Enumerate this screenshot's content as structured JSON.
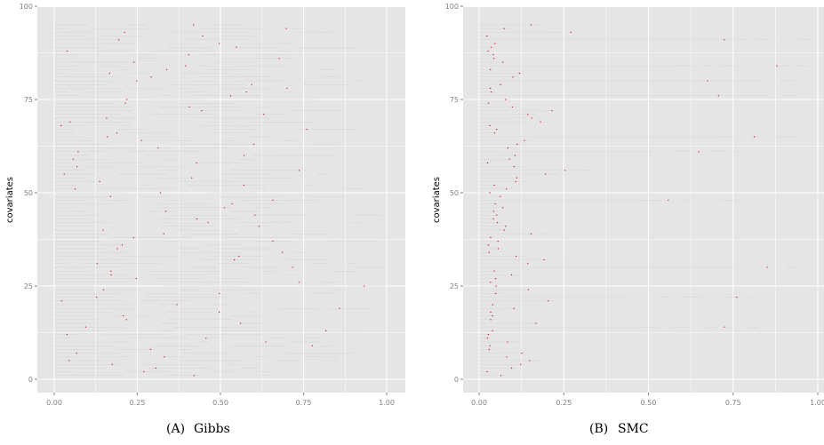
{
  "chart_data": [
    {
      "type": "bar",
      "subtype": "horizontal interval bars (one row per covariate)",
      "caption_label": "(A)",
      "caption_title": "Gibbs",
      "ylabel": "covariates",
      "xlabel": "",
      "xlim": [
        0,
        1
      ],
      "ylim": [
        0,
        100
      ],
      "x_ticks": [
        "0.00",
        "0.25",
        "0.50",
        "0.75",
        "1.00"
      ],
      "y_ticks": [
        "0",
        "25",
        "50",
        "75",
        "100"
      ],
      "grid": true,
      "panel_background": "#e5e5e5",
      "interval_colors": [
        "#000000",
        "#ffffff"
      ],
      "marker_color": "#cc0000",
      "n_rows": 95,
      "description": "Each covariate row shows alternating black/white interval segments from 0 towards ~0.55-1.00 with a red tick marker."
    },
    {
      "type": "bar",
      "subtype": "horizontal interval bars (one row per covariate)",
      "caption_label": "(B)",
      "caption_title": "SMC",
      "ylabel": "covariates",
      "xlabel": "",
      "xlim": [
        0,
        1
      ],
      "ylim": [
        0,
        100
      ],
      "x_ticks": [
        "0.00",
        "0.25",
        "0.50",
        "0.75",
        "1.00"
      ],
      "y_ticks": [
        "0",
        "25",
        "50",
        "75",
        "100"
      ],
      "grid": true,
      "panel_background": "#e5e5e5",
      "interval_colors": [
        "#333333",
        "#000000",
        "#ffffff"
      ],
      "marker_color": "#cc0000",
      "n_rows": 95,
      "long_rows_end": [
        {
          "row": 91,
          "end": 0.98
        },
        {
          "row": 84,
          "end": 0.97
        },
        {
          "row": 80,
          "end": 0.95
        },
        {
          "row": 76,
          "end": 0.93
        },
        {
          "row": 65,
          "end": 0.98
        },
        {
          "row": 61,
          "end": 0.77
        },
        {
          "row": 48,
          "end": 0.79
        },
        {
          "row": 30,
          "end": 0.97
        },
        {
          "row": 22,
          "end": 0.82
        },
        {
          "row": 14,
          "end": 0.83
        }
      ]
    }
  ]
}
